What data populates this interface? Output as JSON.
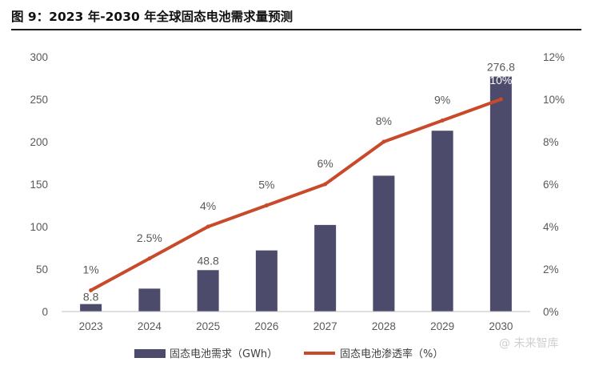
{
  "header": {
    "title": "图 9：2023 年-2030 年全球固态电池需求量预测"
  },
  "watermark": {
    "text": "@ 未来智库"
  },
  "chart_data": {
    "type": "bar",
    "categories": [
      "2023",
      "2024",
      "2025",
      "2026",
      "2027",
      "2028",
      "2029",
      "2030"
    ],
    "series": [
      {
        "name": "固态电池需求（GWh）",
        "type": "bar",
        "axis": "left",
        "color": "#4d4b6b",
        "values": [
          8.8,
          27,
          48.8,
          72,
          102,
          160,
          213,
          276.8
        ],
        "labels": [
          "8.8",
          "",
          "48.8",
          "",
          "",
          "",
          "",
          "276.8"
        ]
      },
      {
        "name": "固态电池渗透率（%）",
        "type": "line",
        "axis": "right",
        "color": "#c94a2a",
        "values": [
          1,
          2.5,
          4,
          5,
          6,
          8,
          9,
          10
        ],
        "labels": [
          "1%",
          "2.5%",
          "4%",
          "5%",
          "6%",
          "8%",
          "9%",
          "10%"
        ]
      }
    ],
    "y_left": {
      "range": [
        0,
        300
      ],
      "ticks": [
        "0",
        "50",
        "100",
        "150",
        "200",
        "250",
        "300"
      ]
    },
    "y_right": {
      "range": [
        0,
        12
      ],
      "ticks": [
        "0%",
        "2%",
        "4%",
        "6%",
        "8%",
        "10%",
        "12%"
      ]
    },
    "grid": false,
    "legend_position": "bottom"
  }
}
